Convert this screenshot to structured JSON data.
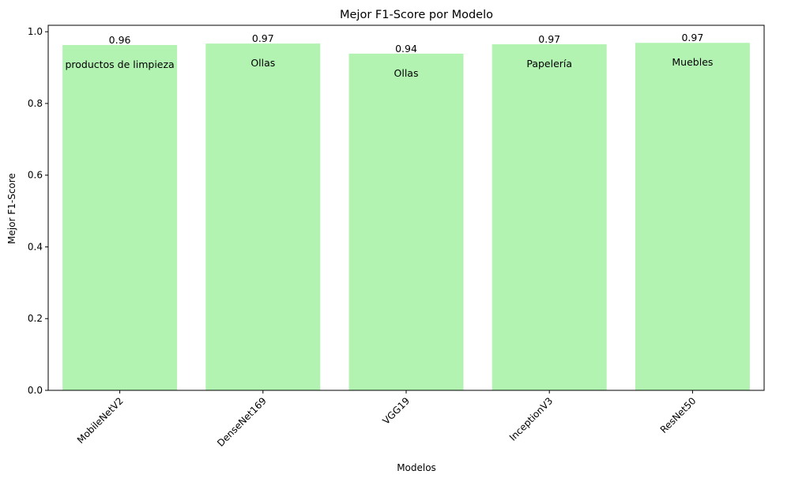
{
  "chart_data": {
    "type": "bar",
    "title": "Mejor F1-Score por Modelo",
    "xlabel": "Modelos",
    "ylabel": "Mejor F1-Score",
    "categories": [
      "MobileNetV2",
      "DenseNet169",
      "VGG19",
      "InceptionV3",
      "ResNet50"
    ],
    "values": [
      0.963,
      0.967,
      0.939,
      0.965,
      0.969
    ],
    "value_labels": [
      "0.96",
      "0.97",
      "0.94",
      "0.97",
      "0.97"
    ],
    "bar_annotations": [
      "productos de limpieza",
      "Ollas",
      "Ollas",
      "Papelería",
      "Muebles"
    ],
    "ylim": [
      0,
      1.018
    ],
    "yticks": [
      0.0,
      0.2,
      0.4,
      0.6,
      0.8,
      1.0
    ],
    "ytick_labels": [
      "0.0",
      "0.2",
      "0.4",
      "0.6",
      "0.8",
      "1.0"
    ],
    "xtick_rotation": 45,
    "bar_color": "#b2f3b2",
    "grid": false,
    "legend": "none"
  }
}
